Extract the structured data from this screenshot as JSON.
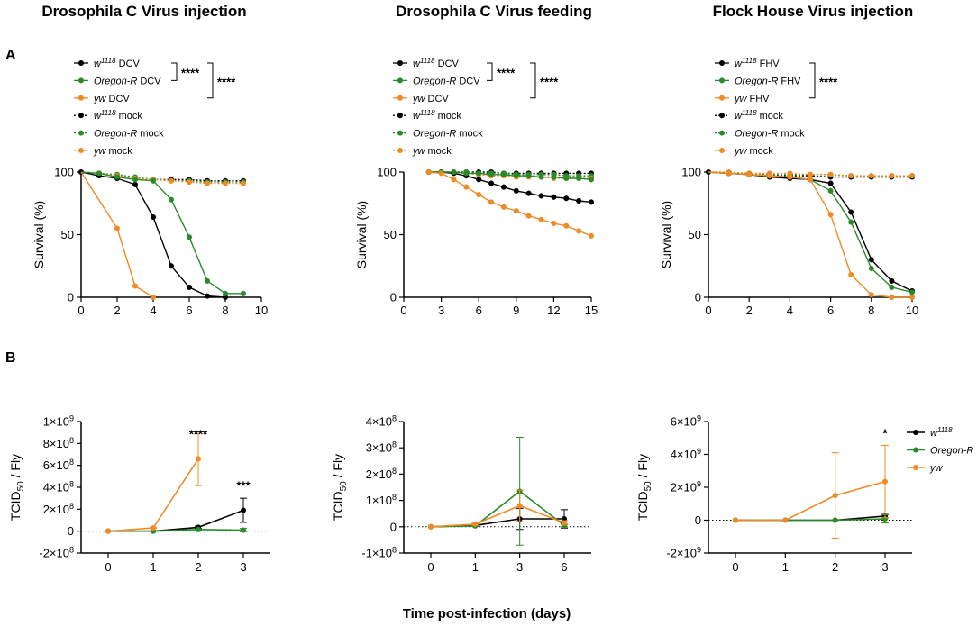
{
  "colors": {
    "w1118": "#000000",
    "oregon": "#2a8a2a",
    "yw": "#f08a24"
  },
  "panel_labels": [
    "A",
    "B"
  ],
  "x_title": "Time post-infection (days)",
  "chart_data": [
    {
      "id": "a1",
      "type": "line",
      "title": "Drosophila C Virus injection",
      "ylabel": "Survival (%)",
      "xlabel": "",
      "xlim": [
        0,
        10
      ],
      "ylim": [
        0,
        100
      ],
      "xticks": [
        "0",
        "2",
        "4",
        "6",
        "8",
        "10"
      ],
      "xtick_values": [
        0,
        2,
        4,
        6,
        8,
        10
      ],
      "yticks": [
        "0",
        "50",
        "100"
      ],
      "ytick_values": [
        0,
        50,
        100
      ],
      "legend": [
        {
          "italic": "w",
          "sup": "1118",
          "rest": " DCV"
        },
        {
          "italic": "Oregon-R",
          "sup": "",
          "rest": " DCV"
        },
        {
          "italic": "yw",
          "sup": "",
          "rest": " DCV"
        },
        {
          "italic": "w",
          "sup": "1118",
          "rest": " mock"
        },
        {
          "italic": "Oregon-R",
          "sup": "",
          "rest": " mock"
        },
        {
          "italic": "yw",
          "sup": "",
          "rest": " mock"
        }
      ],
      "sig_labels": [
        "****",
        "****"
      ],
      "series": [
        {
          "name": "w1118 DCV",
          "color": "w1118",
          "dashed": false,
          "x": [
            0,
            1,
            2,
            3,
            4,
            5,
            6,
            7,
            8
          ],
          "y": [
            100,
            97,
            95,
            90,
            64,
            25,
            8,
            1,
            0
          ]
        },
        {
          "name": "Oregon-R DCV",
          "color": "oregon",
          "dashed": false,
          "x": [
            0,
            1,
            2,
            3,
            4,
            5,
            6,
            7,
            8,
            9
          ],
          "y": [
            100,
            99,
            96,
            94,
            93,
            78,
            48,
            13,
            3,
            3
          ]
        },
        {
          "name": "yw DCV",
          "color": "yw",
          "dashed": false,
          "x": [
            0,
            2,
            3,
            4
          ],
          "y": [
            100,
            55,
            9,
            0
          ]
        },
        {
          "name": "w1118 mock",
          "color": "w1118",
          "dashed": true,
          "x": [
            0,
            1,
            2,
            3,
            4,
            5,
            6,
            7,
            8,
            9
          ],
          "y": [
            100,
            99,
            97,
            95,
            94,
            94,
            94,
            93,
            93,
            93
          ]
        },
        {
          "name": "Oregon-R mock",
          "color": "oregon",
          "dashed": true,
          "x": [
            0,
            1,
            2,
            3,
            4,
            5,
            6,
            7,
            8,
            9
          ],
          "y": [
            100,
            99,
            98,
            96,
            94,
            93,
            93,
            92,
            92,
            92
          ]
        },
        {
          "name": "yw mock",
          "color": "yw",
          "dashed": true,
          "x": [
            0,
            1,
            2,
            3,
            4,
            5,
            6,
            7,
            8,
            9
          ],
          "y": [
            100,
            99,
            97,
            95,
            94,
            93,
            92,
            91,
            91,
            91
          ]
        }
      ]
    },
    {
      "id": "a2",
      "type": "line",
      "title": "Drosophila C Virus feeding",
      "ylabel": "Survival (%)",
      "xlabel": "",
      "xlim": [
        0,
        15
      ],
      "ylim": [
        0,
        100
      ],
      "xticks": [
        "0",
        "3",
        "6",
        "9",
        "12",
        "15"
      ],
      "xtick_values": [
        0,
        3,
        6,
        9,
        12,
        15
      ],
      "yticks": [
        "0",
        "50",
        "100"
      ],
      "ytick_values": [
        0,
        50,
        100
      ],
      "legend": [
        {
          "italic": "w",
          "sup": "1118",
          "rest": " DCV"
        },
        {
          "italic": "Oregon-R",
          "sup": "",
          "rest": " DCV"
        },
        {
          "italic": "yw",
          "sup": "",
          "rest": " DCV"
        },
        {
          "italic": "w",
          "sup": "1118",
          "rest": " mock"
        },
        {
          "italic": "Oregon-R",
          "sup": "",
          "rest": " mock"
        },
        {
          "italic": "yw",
          "sup": "",
          "rest": " mock"
        }
      ],
      "sig_labels": [
        "****",
        "****"
      ],
      "series": [
        {
          "name": "w1118 DCV",
          "color": "w1118",
          "dashed": false,
          "x": [
            2,
            3,
            4,
            5,
            6,
            7,
            8,
            9,
            10,
            11,
            12,
            13,
            14,
            15
          ],
          "y": [
            100,
            100,
            99,
            97,
            94,
            91,
            88,
            85,
            83,
            81,
            80,
            79,
            77,
            76
          ]
        },
        {
          "name": "Oregon-R DCV",
          "color": "oregon",
          "dashed": false,
          "x": [
            2,
            3,
            4,
            5,
            6,
            7,
            8,
            9,
            10,
            11,
            12,
            13,
            14,
            15
          ],
          "y": [
            100,
            100,
            100,
            99,
            99,
            98,
            98,
            97,
            97,
            96,
            96,
            95,
            95,
            94
          ]
        },
        {
          "name": "yw DCV",
          "color": "yw",
          "dashed": false,
          "x": [
            2,
            3,
            4,
            5,
            6,
            7,
            8,
            9,
            10,
            11,
            12,
            13,
            14,
            15
          ],
          "y": [
            100,
            99,
            94,
            88,
            82,
            76,
            72,
            69,
            65,
            62,
            59,
            57,
            53,
            49
          ]
        },
        {
          "name": "w1118 mock",
          "color": "w1118",
          "dashed": true,
          "x": [
            2,
            3,
            4,
            5,
            6,
            7,
            8,
            9,
            10,
            11,
            12,
            13,
            14,
            15
          ],
          "y": [
            100,
            100,
            100,
            100,
            100,
            100,
            99,
            99,
            99,
            99,
            99,
            99,
            99,
            99
          ]
        },
        {
          "name": "Oregon-R mock",
          "color": "oregon",
          "dashed": true,
          "x": [
            2,
            3,
            4,
            5,
            6,
            7,
            8,
            9,
            10,
            11,
            12,
            13,
            14,
            15
          ],
          "y": [
            100,
            100,
            100,
            100,
            99,
            99,
            99,
            98,
            98,
            98,
            98,
            97,
            97,
            97
          ]
        },
        {
          "name": "yw mock",
          "color": "yw",
          "dashed": true,
          "x": [
            2,
            3,
            4,
            5,
            6,
            7,
            8,
            9,
            10,
            11,
            12,
            13,
            14,
            15
          ],
          "y": [
            100,
            100,
            100,
            99,
            98,
            97,
            97,
            96,
            96,
            96,
            95,
            95,
            95,
            95
          ]
        }
      ]
    },
    {
      "id": "a3",
      "type": "line",
      "title": "Flock House Virus injection",
      "ylabel": "Survival (%)",
      "xlabel": "",
      "xlim": [
        0,
        10
      ],
      "ylim": [
        0,
        100
      ],
      "xticks": [
        "0",
        "2",
        "4",
        "6",
        "8",
        "10"
      ],
      "xtick_values": [
        0,
        2,
        4,
        6,
        8,
        10
      ],
      "yticks": [
        "0",
        "50",
        "100"
      ],
      "ytick_values": [
        0,
        50,
        100
      ],
      "legend": [
        {
          "italic": "w",
          "sup": "1118",
          "rest": " FHV"
        },
        {
          "italic": "Oregon-R",
          "sup": "",
          "rest": " FHV"
        },
        {
          "italic": "yw",
          "sup": "",
          "rest": " FHV"
        },
        {
          "italic": "w",
          "sup": "1118",
          "rest": " mock"
        },
        {
          "italic": "Oregon-R",
          "sup": "",
          "rest": " mock"
        },
        {
          "italic": "yw",
          "sup": "",
          "rest": " mock"
        }
      ],
      "sig_labels": [
        "****"
      ],
      "series": [
        {
          "name": "w1118 FHV",
          "color": "w1118",
          "dashed": false,
          "x": [
            0,
            1,
            2,
            3,
            4,
            5,
            6,
            7,
            8,
            9,
            10
          ],
          "y": [
            100,
            99,
            98,
            96,
            95,
            94,
            91,
            68,
            30,
            13,
            5
          ]
        },
        {
          "name": "Oregon-R FHV",
          "color": "oregon",
          "dashed": false,
          "x": [
            0,
            1,
            2,
            3,
            4,
            5,
            6,
            7,
            8,
            9,
            10
          ],
          "y": [
            100,
            99,
            98,
            97,
            96,
            94,
            85,
            60,
            23,
            8,
            4
          ]
        },
        {
          "name": "yw FHV",
          "color": "yw",
          "dashed": false,
          "x": [
            0,
            1,
            2,
            3,
            4,
            5,
            6,
            7,
            8,
            9,
            10
          ],
          "y": [
            100,
            99,
            98,
            97,
            96,
            94,
            66,
            18,
            2,
            0,
            0
          ]
        },
        {
          "name": "w1118 mock",
          "color": "w1118",
          "dashed": true,
          "x": [
            0,
            1,
            2,
            3,
            4,
            5,
            6,
            7,
            8,
            9,
            10
          ],
          "y": [
            100,
            99,
            98,
            97,
            97,
            97,
            96,
            96,
            96,
            96,
            96
          ]
        },
        {
          "name": "Oregon-R mock",
          "color": "oregon",
          "dashed": true,
          "x": [
            0,
            1,
            2,
            3,
            4,
            5,
            6,
            7,
            8,
            9,
            10
          ],
          "y": [
            100,
            99,
            99,
            98,
            98,
            98,
            98,
            97,
            97,
            97,
            97
          ]
        },
        {
          "name": "yw mock",
          "color": "yw",
          "dashed": true,
          "x": [
            0,
            1,
            2,
            3,
            4,
            5,
            6,
            7,
            8,
            9,
            10
          ],
          "y": [
            100,
            100,
            99,
            99,
            99,
            98,
            98,
            97,
            97,
            97,
            97
          ]
        }
      ]
    },
    {
      "id": "b1",
      "type": "line",
      "ylabel": "TCID50 / Fly",
      "xlabel": "",
      "categories": [
        "0",
        "1",
        "2",
        "3"
      ],
      "ylim": [
        -200000000,
        1000000000
      ],
      "yticks": [
        "-2×10⁸",
        "0",
        "2×10⁸",
        "4×10⁸",
        "6×10⁸",
        "8×10⁸",
        "1×10⁹"
      ],
      "ytick_values": [
        -200000000,
        0,
        200000000,
        400000000,
        600000000,
        800000000,
        1000000000
      ],
      "sig_labels": [
        "****",
        "***"
      ],
      "series": [
        {
          "name": "w1118",
          "color": "w1118",
          "values": [
            0,
            0,
            35000000,
            190000000
          ],
          "err": [
            0,
            0,
            10000000,
            110000000
          ]
        },
        {
          "name": "Oregon-R",
          "color": "oregon",
          "values": [
            0,
            0,
            15000000,
            10000000
          ],
          "err": [
            0,
            0,
            5000000,
            15000000
          ]
        },
        {
          "name": "yw",
          "color": "yw",
          "values": [
            0,
            30000000,
            660000000,
            null
          ],
          "err": [
            0,
            5000000,
            245000000,
            null
          ]
        }
      ]
    },
    {
      "id": "b2",
      "type": "line",
      "ylabel": "TCID50 / Fly",
      "xlabel": "",
      "categories": [
        "0",
        "1",
        "3",
        "6"
      ],
      "ylim": [
        -100000000,
        400000000
      ],
      "yticks": [
        "-1×10⁸",
        "0",
        "1×10⁸",
        "2×10⁸",
        "3×10⁸",
        "4×10⁸"
      ],
      "ytick_values": [
        -100000000,
        0,
        100000000,
        200000000,
        300000000,
        400000000
      ],
      "sig_labels": [],
      "series": [
        {
          "name": "w1118",
          "color": "w1118",
          "values": [
            0,
            5000000,
            30000000,
            30000000
          ],
          "err": [
            0,
            3000000,
            40000000,
            35000000
          ]
        },
        {
          "name": "Oregon-R",
          "color": "oregon",
          "values": [
            0,
            3000000,
            135000000,
            5000000
          ],
          "err": [
            0,
            2000000,
            205000000,
            5000000
          ]
        },
        {
          "name": "yw",
          "color": "yw",
          "values": [
            0,
            10000000,
            80000000,
            15000000
          ],
          "err": [
            0,
            4000000,
            60000000,
            8000000
          ]
        }
      ]
    },
    {
      "id": "b3",
      "type": "line",
      "ylabel": "TCID50 / Fly",
      "xlabel": "",
      "categories": [
        "0",
        "1",
        "2",
        "3"
      ],
      "ylim": [
        -2000000000,
        6000000000
      ],
      "yticks": [
        "-2×10⁹",
        "0",
        "2×10⁹",
        "4×10⁹",
        "6×10⁹"
      ],
      "ytick_values": [
        -2000000000,
        0,
        2000000000,
        4000000000,
        6000000000
      ],
      "sig_labels": [
        "*"
      ],
      "legend": [
        {
          "italic": "w",
          "sup": "1118",
          "rest": ""
        },
        {
          "italic": "Oregon-R",
          "sup": "",
          "rest": ""
        },
        {
          "italic": "yw",
          "sup": "",
          "rest": ""
        }
      ],
      "series": [
        {
          "name": "w1118",
          "color": "w1118",
          "values": [
            0,
            0,
            0,
            250000000
          ],
          "err": [
            0,
            0,
            0,
            100000000
          ]
        },
        {
          "name": "Oregon-R",
          "color": "oregon",
          "values": [
            0,
            0,
            0,
            80000000
          ],
          "err": [
            0,
            0,
            0,
            250000000
          ]
        },
        {
          "name": "yw",
          "color": "yw",
          "values": [
            0,
            0,
            1500000000,
            2350000000
          ],
          "err": [
            0,
            0,
            2600000000,
            2200000000
          ]
        }
      ]
    }
  ]
}
